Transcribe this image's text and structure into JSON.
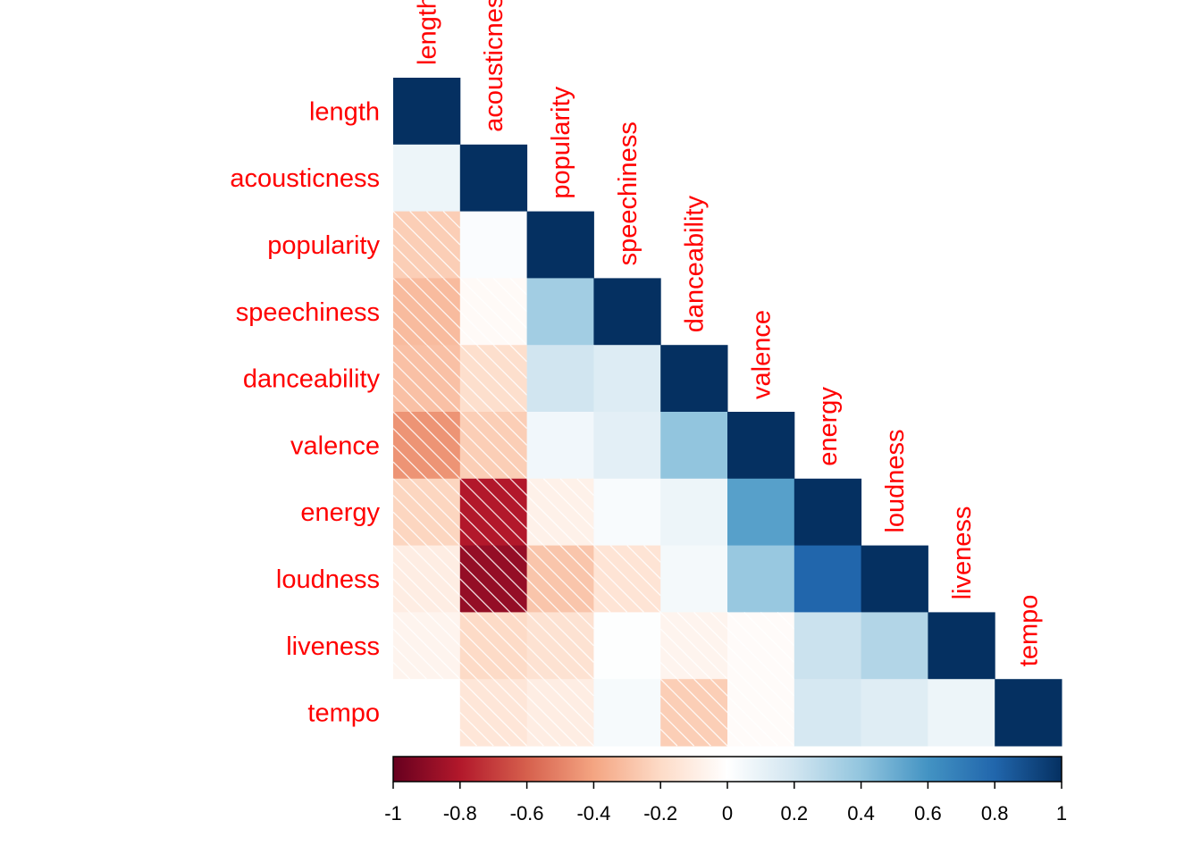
{
  "chart_data": {
    "type": "heatmap",
    "subtype": "lower-triangular correlation matrix",
    "variables": [
      "length",
      "acousticness",
      "popularity",
      "speechiness",
      "danceability",
      "valence",
      "energy",
      "loudness",
      "liveness",
      "tempo"
    ],
    "matrix": [
      [
        1,
        0.08,
        -0.25,
        -0.32,
        -0.3,
        -0.45,
        -0.22,
        -0.1,
        -0.06,
        0.0
      ],
      [
        0.08,
        1,
        0.02,
        -0.03,
        -0.18,
        -0.25,
        -0.8,
        -0.88,
        -0.2,
        -0.14
      ],
      [
        -0.25,
        0.02,
        1,
        0.35,
        0.2,
        0.06,
        -0.08,
        -0.28,
        -0.16,
        -0.1
      ],
      [
        -0.32,
        -0.03,
        0.35,
        1,
        0.15,
        0.12,
        0.03,
        -0.15,
        0.01,
        0.04
      ],
      [
        -0.3,
        -0.18,
        0.2,
        0.15,
        1,
        0.4,
        0.08,
        0.05,
        -0.06,
        -0.25
      ],
      [
        -0.45,
        -0.25,
        0.06,
        0.12,
        0.4,
        1,
        0.55,
        0.38,
        -0.02,
        -0.02
      ],
      [
        -0.22,
        -0.8,
        -0.08,
        0.03,
        0.08,
        0.55,
        1,
        0.8,
        0.22,
        0.18
      ],
      [
        -0.1,
        -0.88,
        -0.28,
        -0.15,
        0.05,
        0.38,
        0.8,
        1,
        0.3,
        0.14
      ],
      [
        -0.06,
        -0.2,
        -0.16,
        0.01,
        -0.06,
        -0.02,
        0.22,
        0.3,
        1,
        0.08
      ],
      [
        0.0,
        -0.14,
        -0.1,
        0.04,
        -0.25,
        -0.02,
        0.18,
        0.14,
        0.08,
        1
      ]
    ],
    "negative_cells_hatched": true,
    "legend": {
      "type": "colorbar",
      "placement": "bottom",
      "range": [
        -1,
        1
      ],
      "ticks": [
        "-1",
        "-0.8",
        "-0.6",
        "-0.4",
        "-0.2",
        "0",
        "0.2",
        "0.4",
        "0.6",
        "0.8",
        "1"
      ]
    },
    "colors": {
      "label": "#ff0000",
      "scale": [
        "#67001f",
        "#b2182b",
        "#d6604d",
        "#f4a582",
        "#fddbc7",
        "#ffffff",
        "#d1e5f0",
        "#92c5de",
        "#4393c3",
        "#2166ac",
        "#053061"
      ],
      "hatch": "#ffffff"
    }
  }
}
